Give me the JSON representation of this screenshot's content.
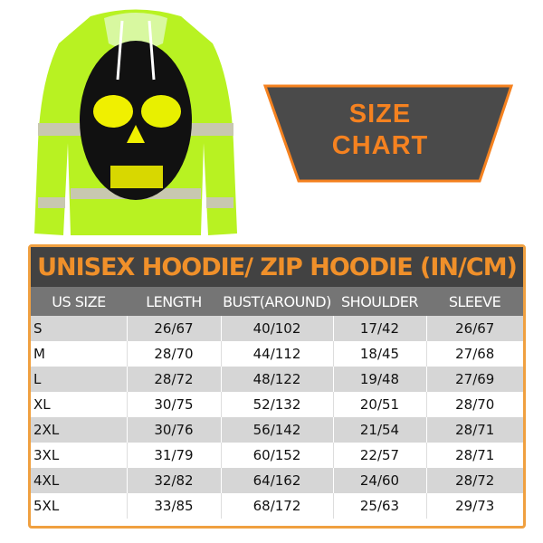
{
  "banner": {
    "line1": "SIZE",
    "line2": "CHART"
  },
  "colors": {
    "accent": "#f58220",
    "hoodie": "#b8f222",
    "banner_bg": "#4a4a4a",
    "title_bg": "#424242",
    "header_bg": "#757575"
  },
  "table": {
    "title": "UNISEX HOODIE/ ZIP HOODIE (IN/CM)",
    "headers": [
      "US SIZE",
      "LENGTH",
      "BUST(AROUND)",
      "SHOULDER",
      "SLEEVE"
    ],
    "rows": [
      [
        "S",
        "26/67",
        "40/102",
        "17/42",
        "26/67"
      ],
      [
        "M",
        "28/70",
        "44/112",
        "18/45",
        "27/68"
      ],
      [
        "L",
        "28/72",
        "48/122",
        "19/48",
        "27/69"
      ],
      [
        "XL",
        "30/75",
        "52/132",
        "20/51",
        "28/70"
      ],
      [
        "2XL",
        "30/76",
        "56/142",
        "21/54",
        "28/71"
      ],
      [
        "3XL",
        "31/79",
        "60/152",
        "22/57",
        "28/71"
      ],
      [
        "4XL",
        "32/82",
        "64/162",
        "24/60",
        "28/72"
      ],
      [
        "5XL",
        "33/85",
        "68/172",
        "25/63",
        "29/73"
      ]
    ]
  }
}
